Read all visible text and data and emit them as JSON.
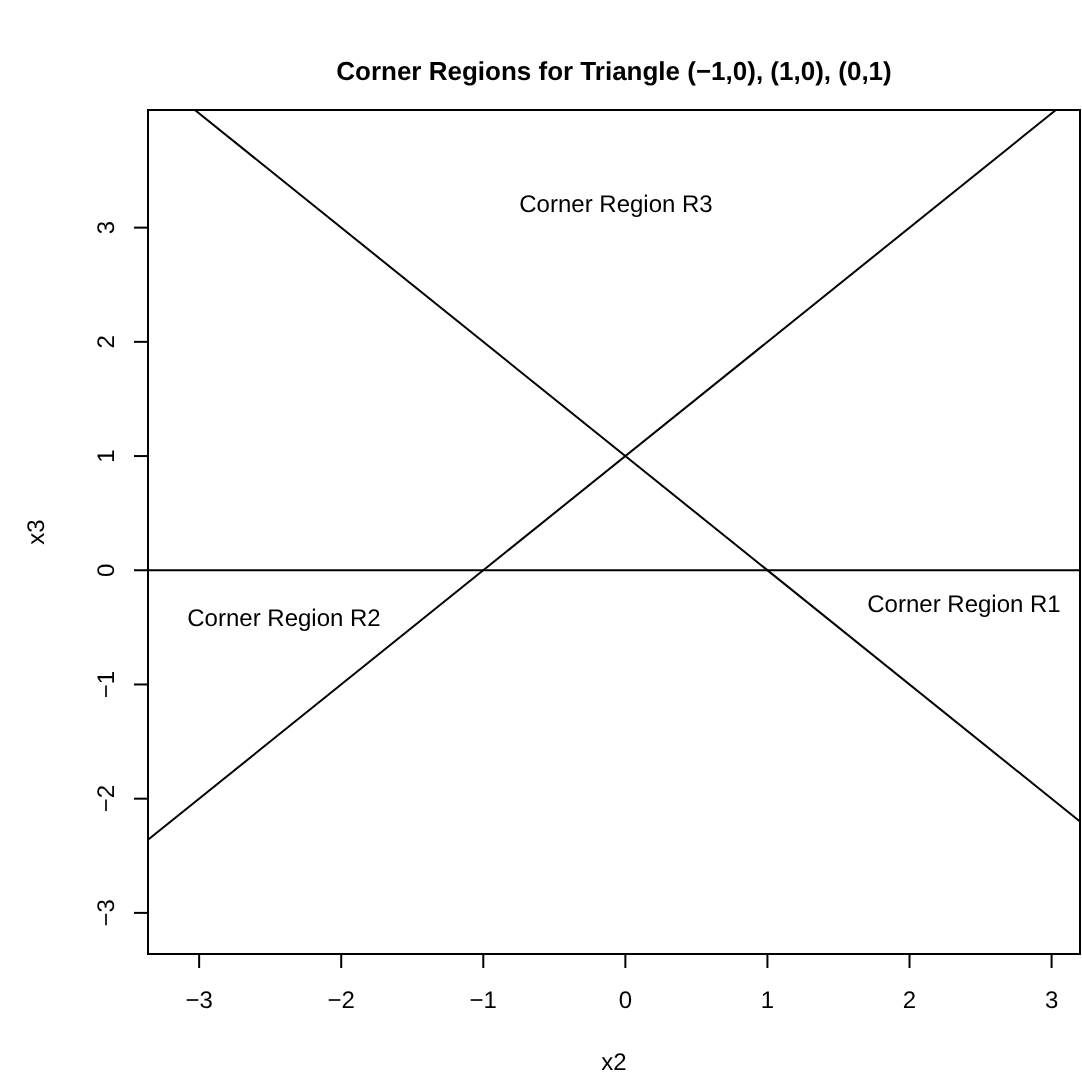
{
  "chart_data": {
    "type": "line",
    "title": "Corner Regions for Triangle (−1,0), (1,0), (0,1)",
    "xlabel": "x2",
    "ylabel": "x3",
    "xlim": [
      -3.36,
      3.2
    ],
    "ylim": [
      -3.36,
      4.03
    ],
    "xticks": [
      {
        "value": -3,
        "label": "−3"
      },
      {
        "value": -2,
        "label": "−2"
      },
      {
        "value": -1,
        "label": "−1"
      },
      0,
      1,
      2,
      3
    ],
    "yticks": [
      {
        "value": -3,
        "label": "−3"
      },
      {
        "value": -2,
        "label": "−2"
      },
      {
        "value": -1,
        "label": "−1"
      },
      0,
      1,
      2,
      3
    ],
    "series": [
      {
        "color": "#000000",
        "x": [
          -3.36,
          3.03
        ],
        "values": [
          -2.36,
          4.03
        ]
      },
      {
        "color": "#000000",
        "x": [
          -3.03,
          3.2
        ],
        "values": [
          4.03,
          -2.2
        ]
      },
      {
        "color": "#000000",
        "x": [
          -3.36,
          3.2
        ],
        "values": [
          0,
          0
        ]
      }
    ],
    "annotations": [
      "Corner Region R3",
      "Corner Region R2",
      "Corner Region R1"
    ],
    "marker": "none",
    "line_style": "solid",
    "grid": false
  }
}
